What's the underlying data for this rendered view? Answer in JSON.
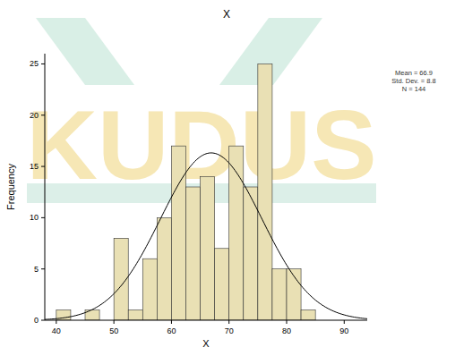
{
  "chart_data": {
    "type": "histogram",
    "title": "X",
    "x_label": "X",
    "y_label": "Frequency",
    "watermark": "KUDUS",
    "bins": [
      40,
      42.5,
      45,
      47.5,
      50,
      52.5,
      55,
      57.5,
      60,
      62.5,
      65,
      67.5,
      70,
      72.5,
      75,
      77.5,
      80,
      82.5,
      85
    ],
    "counts": [
      1,
      0,
      1,
      0,
      8,
      1,
      6,
      10,
      17,
      13,
      14,
      7,
      17,
      13,
      25,
      5,
      5,
      1
    ],
    "color": "#e9e0b4",
    "xlim": [
      38,
      94
    ],
    "xticks": [
      40,
      50,
      60,
      70,
      80,
      90
    ],
    "ylim": [
      0,
      26
    ],
    "yticks": [
      0,
      5,
      10,
      15,
      20,
      25
    ],
    "stats": {
      "mean": 66.9,
      "std_dev": 8.8,
      "n": 144
    },
    "stats_labels": [
      "Mean = 66.9",
      "Std. Dev. = 8.8",
      "N = 144"
    ]
  }
}
